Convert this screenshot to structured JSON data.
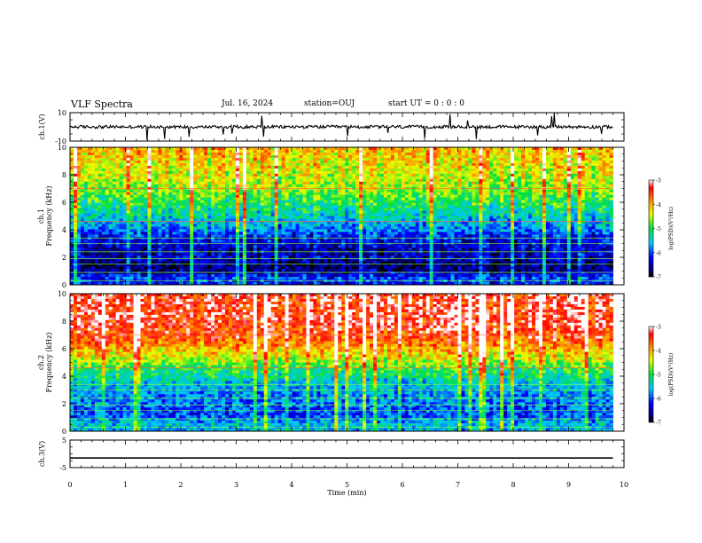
{
  "header": {
    "title": "VLF Spectra",
    "date": "Jul. 16, 2024",
    "station": "station=OUJ",
    "start": "start UT =  0 : 0 : 0"
  },
  "chart_data": [
    {
      "type": "line",
      "name": "ch1-waveform",
      "ylabel": "ch.1(V)",
      "ylim": [
        -10,
        10
      ],
      "yticks": [
        "10",
        "-10"
      ],
      "xlim": [
        0,
        10
      ],
      "baseline": 0,
      "note_values": "noise waveform centered near 0 V with sporadic spikes"
    },
    {
      "type": "heatmap",
      "name": "ch1-spectrogram",
      "ylabel": "ch.1 Frequency (kHz)",
      "ylim": [
        0,
        10
      ],
      "yticks": [
        "0",
        "2",
        "4",
        "6",
        "8",
        "10"
      ],
      "xlim": [
        0,
        10
      ],
      "data_end_min": 9.8,
      "colorbar": {
        "label": "log(PSD)(V²/Hz)",
        "ticks": [
          "-3",
          "-4",
          "-5",
          "-6",
          "-7"
        ],
        "range": [
          -7,
          -3
        ]
      },
      "band_profile": [
        {
          "f": 0.0,
          "v": -6.2
        },
        {
          "f": 0.5,
          "v": -6.0
        },
        {
          "f": 1.0,
          "v": -6.6
        },
        {
          "f": 1.5,
          "v": -6.7
        },
        {
          "f": 2.0,
          "v": -6.4
        },
        {
          "f": 2.5,
          "v": -6.5
        },
        {
          "f": 3.0,
          "v": -6.3
        },
        {
          "f": 3.5,
          "v": -6.2
        },
        {
          "f": 4.0,
          "v": -5.8
        },
        {
          "f": 4.5,
          "v": -5.6
        },
        {
          "f": 5.0,
          "v": -5.4
        },
        {
          "f": 5.5,
          "v": -5.2
        },
        {
          "f": 6.0,
          "v": -5.0
        },
        {
          "f": 6.5,
          "v": -4.8
        },
        {
          "f": 7.0,
          "v": -4.6
        },
        {
          "f": 7.5,
          "v": -4.5
        },
        {
          "f": 8.0,
          "v": -4.4
        },
        {
          "f": 8.5,
          "v": -4.3
        },
        {
          "f": 9.0,
          "v": -4.2
        },
        {
          "f": 9.5,
          "v": -4.1
        },
        {
          "f": 10.0,
          "v": -4.0
        }
      ]
    },
    {
      "type": "heatmap",
      "name": "ch2-spectrogram",
      "ylabel": "ch.2 Frequency (kHz)",
      "ylim": [
        0,
        10
      ],
      "yticks": [
        "0",
        "2",
        "4",
        "6",
        "8",
        "10"
      ],
      "xlim": [
        0,
        10
      ],
      "data_end_min": 9.8,
      "colorbar": {
        "label": "log(PSD)(V²/Hz)",
        "ticks": [
          "-3",
          "-4",
          "-5",
          "-6",
          "-7"
        ],
        "range": [
          -7,
          -3
        ]
      },
      "band_profile": [
        {
          "f": 0.0,
          "v": -5.6
        },
        {
          "f": 0.5,
          "v": -5.5
        },
        {
          "f": 1.0,
          "v": -5.9
        },
        {
          "f": 1.5,
          "v": -6.0
        },
        {
          "f": 2.0,
          "v": -5.8
        },
        {
          "f": 2.5,
          "v": -5.8
        },
        {
          "f": 3.0,
          "v": -5.6
        },
        {
          "f": 3.5,
          "v": -5.5
        },
        {
          "f": 4.0,
          "v": -5.2
        },
        {
          "f": 4.5,
          "v": -5.0
        },
        {
          "f": 5.0,
          "v": -4.6
        },
        {
          "f": 5.5,
          "v": -4.3
        },
        {
          "f": 6.0,
          "v": -4.0
        },
        {
          "f": 6.5,
          "v": -3.7
        },
        {
          "f": 7.0,
          "v": -3.5
        },
        {
          "f": 7.5,
          "v": -3.4
        },
        {
          "f": 8.0,
          "v": -3.3
        },
        {
          "f": 8.5,
          "v": -3.3
        },
        {
          "f": 9.0,
          "v": -3.3
        },
        {
          "f": 9.5,
          "v": -3.3
        },
        {
          "f": 10.0,
          "v": -3.3
        }
      ]
    },
    {
      "type": "line",
      "name": "ch3-waveform",
      "ylabel": "ch.3(V)",
      "ylim": [
        -5,
        5
      ],
      "yticks": [
        "5",
        "-5"
      ],
      "xlim": [
        0,
        10
      ],
      "constant_value": -1.5
    }
  ],
  "xaxis": {
    "label": "Time (min)",
    "ticks": [
      "0",
      "1",
      "2",
      "3",
      "4",
      "5",
      "6",
      "7",
      "8",
      "9",
      "10"
    ]
  }
}
